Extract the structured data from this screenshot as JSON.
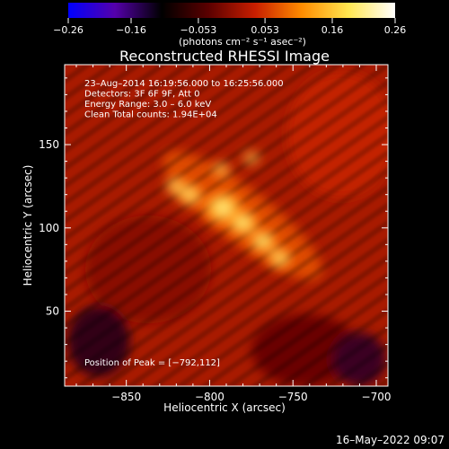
{
  "colorbar": {
    "ticks": [
      "-0.26",
      "-0.16",
      "-0.053",
      "0.053",
      "0.16",
      "0.26"
    ],
    "units": "(photons cm⁻² s⁻¹ asec⁻²)",
    "colors": [
      "#0000ff",
      "#5500aa",
      "#000000",
      "#5a0000",
      "#c81e00",
      "#ff8c00",
      "#ffe650",
      "#ffffff"
    ]
  },
  "plot": {
    "title": "Reconstructed RHESSI Image",
    "info_lines": [
      "23–Aug–2014 16:19:56.000 to 16:25:56.000",
      "Detectors: 3F 6F 9F, Att 0",
      "Energy Range: 3.0 – 6.0 keV",
      "Clean     Total counts: 1.94E+04"
    ],
    "peak_text": "Position of Peak = [−792,112]",
    "xlabel": "Heliocentric X (arcsec)",
    "ylabel": "Heliocentric Y (arcsec)"
  },
  "footer": {
    "date": "16–May–2022 09:07"
  },
  "chart_data": {
    "type": "heatmap",
    "title": "Reconstructed RHESSI Image",
    "xlabel": "Heliocentric X (arcsec)",
    "ylabel": "Heliocentric Y (arcsec)",
    "xlim": [
      -887,
      -693
    ],
    "ylim": [
      5,
      198
    ],
    "x_ticks": [
      -850,
      -800,
      -750,
      -700
    ],
    "y_ticks": [
      50,
      100,
      150
    ],
    "x_tick_labels": [
      "−850",
      "−800",
      "−750",
      "−700"
    ],
    "y_tick_labels": [
      "50",
      "100",
      "150"
    ],
    "zlim": [
      -0.26,
      0.26
    ],
    "peak": [
      -792,
      112
    ],
    "sources": [
      {
        "x": -792,
        "y": 112,
        "value": 0.26
      },
      {
        "x": -780,
        "y": 103,
        "value": 0.19
      },
      {
        "x": -768,
        "y": 92,
        "value": 0.16
      },
      {
        "x": -758,
        "y": 82,
        "value": 0.14
      },
      {
        "x": -812,
        "y": 120,
        "value": 0.15
      },
      {
        "x": -820,
        "y": 125,
        "value": 0.12
      },
      {
        "x": -793,
        "y": 135,
        "value": 0.09
      },
      {
        "x": -775,
        "y": 142,
        "value": 0.08
      }
    ],
    "grid": false
  }
}
